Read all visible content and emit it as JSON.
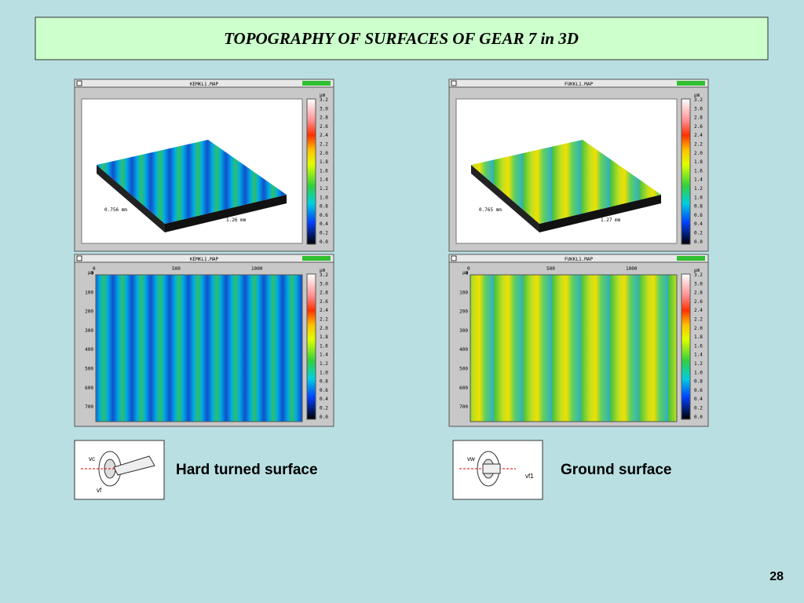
{
  "title": "TOPOGRAPHY OF SURFACES OF GEAR 7 in 3D",
  "color_scale": {
    "unit": "µm",
    "labels": [
      "3.2",
      "3.0",
      "2.8",
      "2.6",
      "2.4",
      "2.2",
      "2.0",
      "1.8",
      "1.6",
      "1.4",
      "1.2",
      "1.0",
      "0.8",
      "0.6",
      "0.4",
      "0.2",
      "0.0"
    ]
  },
  "map_axes": {
    "unit": "µm",
    "x_labels": [
      "0",
      "500",
      "1000"
    ],
    "y_labels": [
      "0",
      "100",
      "200",
      "300",
      "400",
      "500",
      "600",
      "700"
    ]
  },
  "samples": [
    {
      "file": "KEMKL1.MAP",
      "width_label": "0.756 mm",
      "length_label": "1.26 mm",
      "caption": "Hard turned surface",
      "diagram_labels": [
        "vc",
        "vf"
      ]
    },
    {
      "file": "FUKKL1.MAP",
      "width_label": "0.765 mm",
      "length_label": "1.27 mm",
      "caption": "Ground surface",
      "diagram_labels": [
        "vw",
        "vf1"
      ]
    }
  ],
  "page_number": "28"
}
